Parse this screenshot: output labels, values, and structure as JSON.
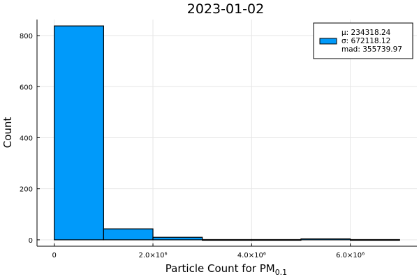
{
  "chart_data": {
    "type": "bar",
    "title": "2023-01-02",
    "xlabel": "Particle Count for PM",
    "xlabel_sub": "0.1",
    "ylabel": "Count",
    "bin_edges": [
      0,
      1000000,
      2000000,
      3000000,
      4000000,
      5000000,
      6000000,
      7000000
    ],
    "values": [
      838,
      43,
      10,
      1,
      1,
      4,
      1
    ],
    "x_ticks": [
      0,
      2000000,
      4000000,
      6000000
    ],
    "x_tick_labels": [
      "0",
      "2.0×10⁶",
      "4.0×10⁶",
      "6.0×10⁶"
    ],
    "y_ticks": [
      0,
      200,
      400,
      600,
      800
    ],
    "y_tick_labels": [
      "0",
      "200",
      "400",
      "600",
      "800"
    ],
    "xlim": [
      -350000,
      7350000
    ],
    "ylim": [
      -25,
      863
    ],
    "grid": true,
    "legend_position": "top-right",
    "legend": [
      "μ: 234318.24",
      "σ: 672118.12",
      "mad: 355739.97"
    ],
    "colors": {
      "bar": "#009AFA",
      "edge": "#000000",
      "grid": "#e6e6e6"
    }
  }
}
